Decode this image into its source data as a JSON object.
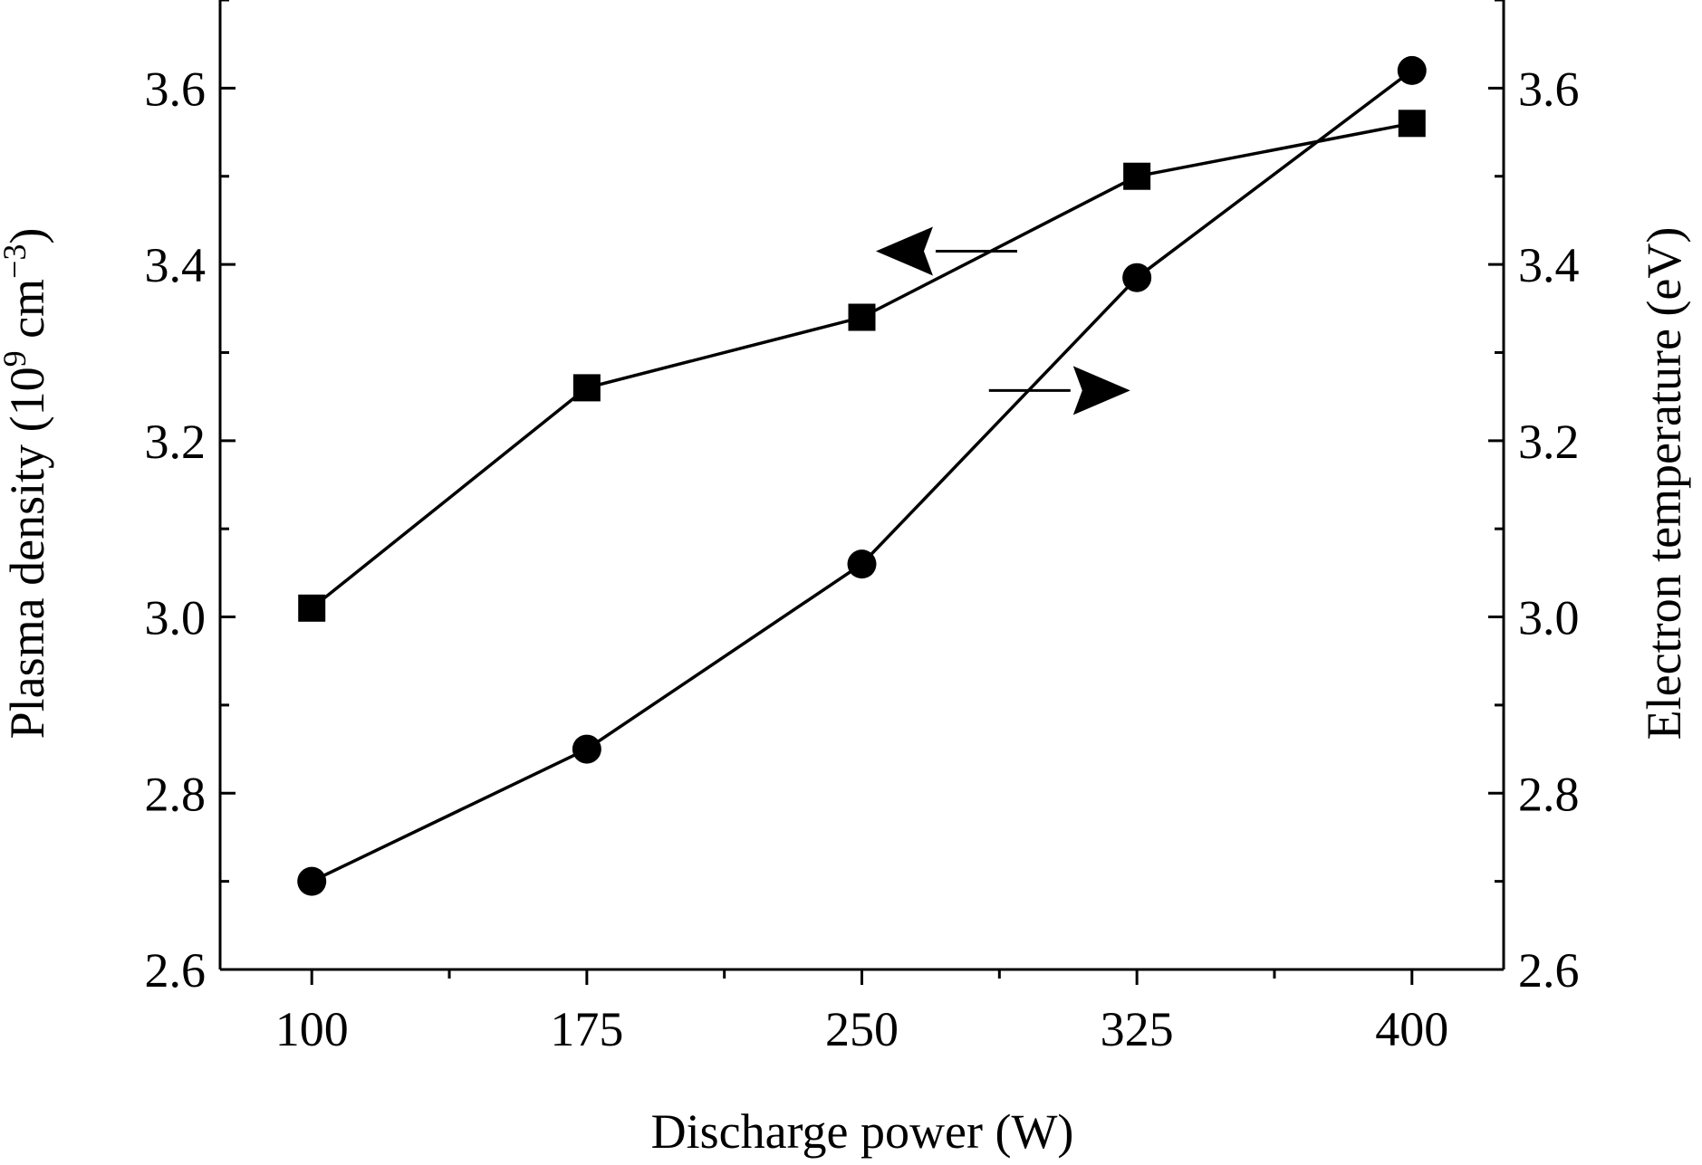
{
  "chart_data": {
    "type": "line",
    "xlabel": "Discharge power (W)",
    "ylabel_left": {
      "prefix": "Plasma density (10",
      "sup1": "9",
      "mid": " cm",
      "sup2": "−3",
      "suffix": ")"
    },
    "ylabel_right": "Electron temperature (eV)",
    "categories": [
      "100",
      "175",
      "250",
      "325",
      "400"
    ],
    "x": [
      100,
      175,
      250,
      325,
      400
    ],
    "xlim": [
      75,
      425
    ],
    "ylim_left": [
      2.6,
      3.7
    ],
    "ylim_right": [
      2.6,
      3.7
    ],
    "yticks": [
      "2.6",
      "2.8",
      "3.0",
      "3.2",
      "3.4",
      "3.6"
    ],
    "grid": false,
    "series": [
      {
        "axis": "left",
        "marker": "square",
        "values": [
          3.01,
          3.26,
          3.34,
          3.5,
          3.56
        ]
      },
      {
        "axis": "right",
        "marker": "circle",
        "values": [
          2.7,
          2.85,
          3.06,
          3.385,
          3.62
        ]
      }
    ],
    "annotations": [
      {
        "type": "arrow",
        "direction": "left",
        "points_to": "left axis",
        "near": [
          280,
          3.415
        ]
      },
      {
        "type": "arrow",
        "direction": "right",
        "points_to": "right axis",
        "near": [
          297,
          3.257
        ]
      }
    ]
  }
}
